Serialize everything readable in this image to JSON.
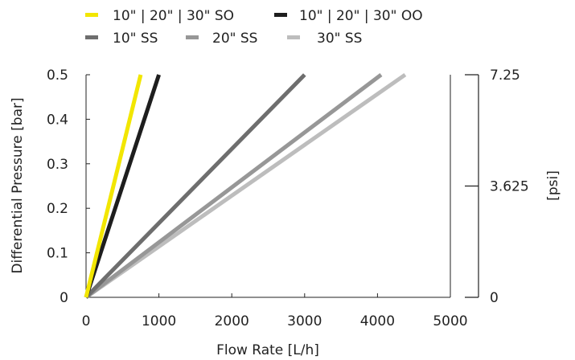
{
  "chart_data": {
    "type": "line",
    "xlabel": "Flow Rate [L/h]",
    "ylabel": "Differential Pressure [bar]",
    "y2label": "[psi]",
    "xlim": [
      0,
      5000
    ],
    "ylim": [
      0,
      0.5
    ],
    "xticks": [
      "0",
      "1000",
      "2000",
      "3000",
      "4000",
      "5000"
    ],
    "yticks": [
      "0",
      "0.1",
      "0.2",
      "0.3",
      "0.4",
      "0.5"
    ],
    "y2ticks": [
      "0",
      "3.625",
      "7.25"
    ],
    "y2_tick_values": [
      0,
      0.25,
      0.5
    ],
    "grid": false,
    "legend_position": "top-left",
    "series": [
      {
        "name": "10\" | 20\" | 30\" SO",
        "color": "#f2e600",
        "x": [
          0,
          750
        ],
        "y": [
          0,
          0.5
        ]
      },
      {
        "name": "10\" | 20\" | 30\" OO",
        "color": "#1e1e1e",
        "x": [
          0,
          1000
        ],
        "y": [
          0,
          0.5
        ]
      },
      {
        "name": "10\" SS",
        "color": "#6e6e6e",
        "x": [
          0,
          3000
        ],
        "y": [
          0,
          0.5
        ]
      },
      {
        "name": "20\" SS",
        "color": "#979797",
        "x": [
          0,
          4050
        ],
        "y": [
          0,
          0.5
        ]
      },
      {
        "name": "30\" SS",
        "color": "#bdbdbd",
        "x": [
          0,
          4380
        ],
        "y": [
          0,
          0.5
        ]
      }
    ]
  }
}
